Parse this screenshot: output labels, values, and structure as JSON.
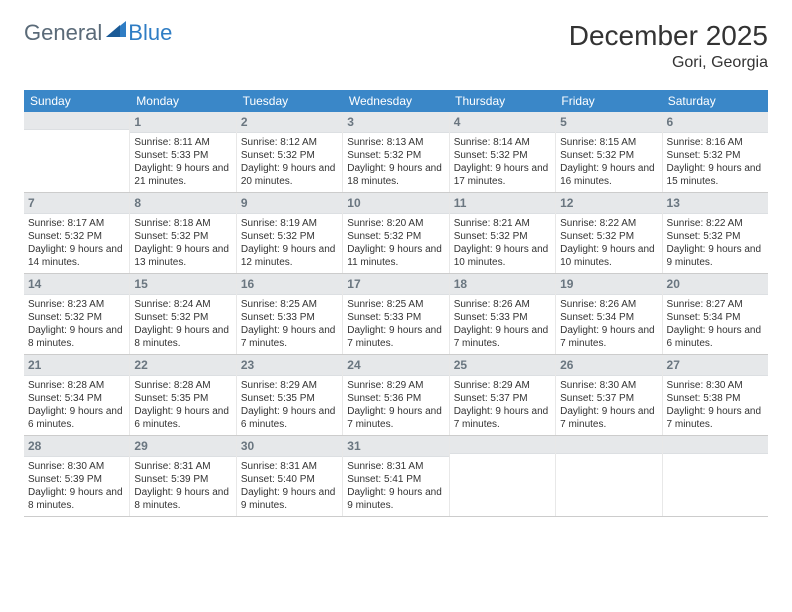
{
  "brand": {
    "name1": "General",
    "name2": "Blue"
  },
  "title": "December 2025",
  "location": "Gori, Georgia",
  "header_bg": "#3a87c8",
  "daynum_bg": "#e6e8ea",
  "weekdays": [
    "Sunday",
    "Monday",
    "Tuesday",
    "Wednesday",
    "Thursday",
    "Friday",
    "Saturday"
  ],
  "weeks": [
    [
      {
        "n": "",
        "sr": "",
        "ss": "",
        "dl": ""
      },
      {
        "n": "1",
        "sr": "Sunrise: 8:11 AM",
        "ss": "Sunset: 5:33 PM",
        "dl": "Daylight: 9 hours and 21 minutes."
      },
      {
        "n": "2",
        "sr": "Sunrise: 8:12 AM",
        "ss": "Sunset: 5:32 PM",
        "dl": "Daylight: 9 hours and 20 minutes."
      },
      {
        "n": "3",
        "sr": "Sunrise: 8:13 AM",
        "ss": "Sunset: 5:32 PM",
        "dl": "Daylight: 9 hours and 18 minutes."
      },
      {
        "n": "4",
        "sr": "Sunrise: 8:14 AM",
        "ss": "Sunset: 5:32 PM",
        "dl": "Daylight: 9 hours and 17 minutes."
      },
      {
        "n": "5",
        "sr": "Sunrise: 8:15 AM",
        "ss": "Sunset: 5:32 PM",
        "dl": "Daylight: 9 hours and 16 minutes."
      },
      {
        "n": "6",
        "sr": "Sunrise: 8:16 AM",
        "ss": "Sunset: 5:32 PM",
        "dl": "Daylight: 9 hours and 15 minutes."
      }
    ],
    [
      {
        "n": "7",
        "sr": "Sunrise: 8:17 AM",
        "ss": "Sunset: 5:32 PM",
        "dl": "Daylight: 9 hours and 14 minutes."
      },
      {
        "n": "8",
        "sr": "Sunrise: 8:18 AM",
        "ss": "Sunset: 5:32 PM",
        "dl": "Daylight: 9 hours and 13 minutes."
      },
      {
        "n": "9",
        "sr": "Sunrise: 8:19 AM",
        "ss": "Sunset: 5:32 PM",
        "dl": "Daylight: 9 hours and 12 minutes."
      },
      {
        "n": "10",
        "sr": "Sunrise: 8:20 AM",
        "ss": "Sunset: 5:32 PM",
        "dl": "Daylight: 9 hours and 11 minutes."
      },
      {
        "n": "11",
        "sr": "Sunrise: 8:21 AM",
        "ss": "Sunset: 5:32 PM",
        "dl": "Daylight: 9 hours and 10 minutes."
      },
      {
        "n": "12",
        "sr": "Sunrise: 8:22 AM",
        "ss": "Sunset: 5:32 PM",
        "dl": "Daylight: 9 hours and 10 minutes."
      },
      {
        "n": "13",
        "sr": "Sunrise: 8:22 AM",
        "ss": "Sunset: 5:32 PM",
        "dl": "Daylight: 9 hours and 9 minutes."
      }
    ],
    [
      {
        "n": "14",
        "sr": "Sunrise: 8:23 AM",
        "ss": "Sunset: 5:32 PM",
        "dl": "Daylight: 9 hours and 8 minutes."
      },
      {
        "n": "15",
        "sr": "Sunrise: 8:24 AM",
        "ss": "Sunset: 5:32 PM",
        "dl": "Daylight: 9 hours and 8 minutes."
      },
      {
        "n": "16",
        "sr": "Sunrise: 8:25 AM",
        "ss": "Sunset: 5:33 PM",
        "dl": "Daylight: 9 hours and 7 minutes."
      },
      {
        "n": "17",
        "sr": "Sunrise: 8:25 AM",
        "ss": "Sunset: 5:33 PM",
        "dl": "Daylight: 9 hours and 7 minutes."
      },
      {
        "n": "18",
        "sr": "Sunrise: 8:26 AM",
        "ss": "Sunset: 5:33 PM",
        "dl": "Daylight: 9 hours and 7 minutes."
      },
      {
        "n": "19",
        "sr": "Sunrise: 8:26 AM",
        "ss": "Sunset: 5:34 PM",
        "dl": "Daylight: 9 hours and 7 minutes."
      },
      {
        "n": "20",
        "sr": "Sunrise: 8:27 AM",
        "ss": "Sunset: 5:34 PM",
        "dl": "Daylight: 9 hours and 6 minutes."
      }
    ],
    [
      {
        "n": "21",
        "sr": "Sunrise: 8:28 AM",
        "ss": "Sunset: 5:34 PM",
        "dl": "Daylight: 9 hours and 6 minutes."
      },
      {
        "n": "22",
        "sr": "Sunrise: 8:28 AM",
        "ss": "Sunset: 5:35 PM",
        "dl": "Daylight: 9 hours and 6 minutes."
      },
      {
        "n": "23",
        "sr": "Sunrise: 8:29 AM",
        "ss": "Sunset: 5:35 PM",
        "dl": "Daylight: 9 hours and 6 minutes."
      },
      {
        "n": "24",
        "sr": "Sunrise: 8:29 AM",
        "ss": "Sunset: 5:36 PM",
        "dl": "Daylight: 9 hours and 7 minutes."
      },
      {
        "n": "25",
        "sr": "Sunrise: 8:29 AM",
        "ss": "Sunset: 5:37 PM",
        "dl": "Daylight: 9 hours and 7 minutes."
      },
      {
        "n": "26",
        "sr": "Sunrise: 8:30 AM",
        "ss": "Sunset: 5:37 PM",
        "dl": "Daylight: 9 hours and 7 minutes."
      },
      {
        "n": "27",
        "sr": "Sunrise: 8:30 AM",
        "ss": "Sunset: 5:38 PM",
        "dl": "Daylight: 9 hours and 7 minutes."
      }
    ],
    [
      {
        "n": "28",
        "sr": "Sunrise: 8:30 AM",
        "ss": "Sunset: 5:39 PM",
        "dl": "Daylight: 9 hours and 8 minutes."
      },
      {
        "n": "29",
        "sr": "Sunrise: 8:31 AM",
        "ss": "Sunset: 5:39 PM",
        "dl": "Daylight: 9 hours and 8 minutes."
      },
      {
        "n": "30",
        "sr": "Sunrise: 8:31 AM",
        "ss": "Sunset: 5:40 PM",
        "dl": "Daylight: 9 hours and 9 minutes."
      },
      {
        "n": "31",
        "sr": "Sunrise: 8:31 AM",
        "ss": "Sunset: 5:41 PM",
        "dl": "Daylight: 9 hours and 9 minutes."
      },
      {
        "n": "",
        "sr": "",
        "ss": "",
        "dl": ""
      },
      {
        "n": "",
        "sr": "",
        "ss": "",
        "dl": ""
      },
      {
        "n": "",
        "sr": "",
        "ss": "",
        "dl": ""
      }
    ]
  ]
}
